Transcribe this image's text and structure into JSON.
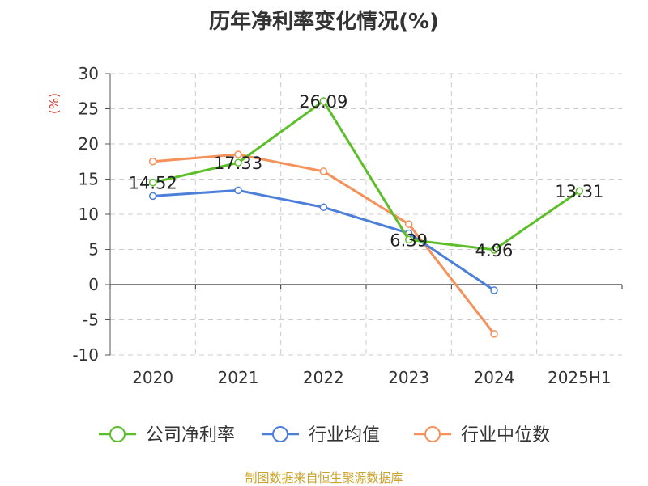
{
  "title": "历年净利率变化情况(%)",
  "source": "制图数据来自恒生聚源数据库",
  "chart_data": {
    "type": "line",
    "title": "历年净利率变化情况(%)",
    "ylabel": "(%)",
    "xlabel": "",
    "categories": [
      "2020",
      "2021",
      "2022",
      "2023",
      "2024",
      "2025H1"
    ],
    "ylim": [
      -10,
      30
    ],
    "yticks": [
      30,
      25,
      20,
      15,
      10,
      5,
      0,
      -5,
      -10
    ],
    "grid": true,
    "legend_position": "bottom",
    "series": [
      {
        "name": "公司净利率",
        "color": "#5cbf2a",
        "values": [
          14.52,
          17.33,
          26.09,
          6.39,
          4.96,
          13.31
        ],
        "labels": [
          "14.52",
          "17.33",
          "26.09",
          "6.39",
          "4.96",
          "13.31"
        ]
      },
      {
        "name": "行业均值",
        "color": "#4c7fd9",
        "values": [
          12.6,
          13.4,
          11.0,
          7.3,
          -0.8,
          null
        ],
        "labels": []
      },
      {
        "name": "行业中位数",
        "color": "#f5915a",
        "values": [
          17.5,
          18.5,
          16.1,
          8.6,
          -7.0,
          null
        ],
        "labels": []
      }
    ]
  }
}
